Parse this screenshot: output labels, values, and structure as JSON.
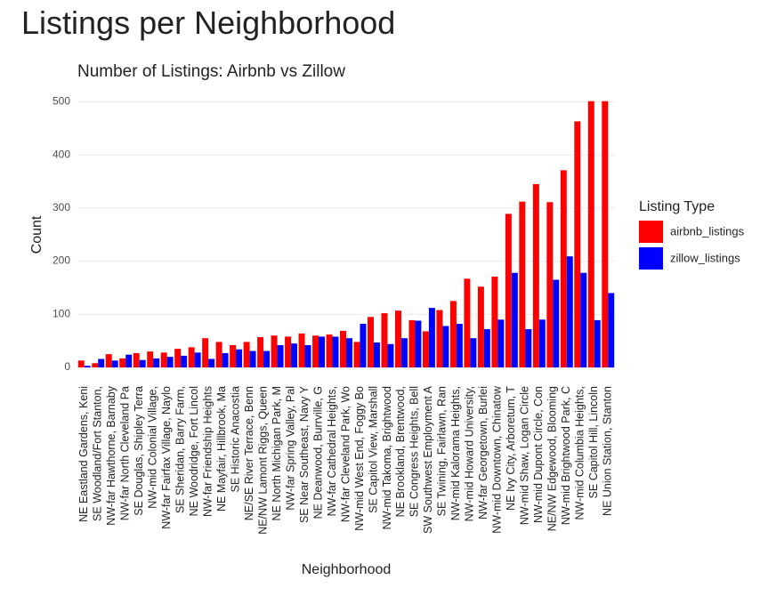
{
  "page_title": "Listings per Neighborhood",
  "chart_data": {
    "type": "grouped-bar",
    "title": "Number of Listings: Airbnb vs Zillow",
    "x_label": "Neighborhood",
    "y_label": "Count",
    "legend_title": "Listing Type",
    "legend_position": "right",
    "categories": [
      "NE Eastland Gardens, Keni",
      "SE Woodland/Fort Stanton,",
      "NW-far Hawthorne, Barnaby",
      "NW-far North Cleveland Pa",
      "SE Douglas, Shipley Terra",
      "NW-mid Colonial Village,",
      "NW-far Fairfax Village, Naylo",
      "SE Sheridan, Barry Farm,",
      "NE Woodridge, Fort Lincol",
      "NW-far Friendship Heights",
      "NE Mayfair, Hillbrook, Ma",
      "SE Historic Anacostia",
      "NE/SE River Terrace, Benn",
      "NE/NW Lamont Riggs, Queen",
      "NE North Michigan Park, M",
      "NW-far Spring Valley, Pal",
      "SE Near Southeast, Navy Y",
      "NE Deanwood, Burrville, G",
      "NW-far Cathedral Heights,",
      "NW-far Cleveland Park, Wo",
      "NW-mid West End, Foggy Bo",
      "SE Capitol View, Marshall",
      "NW-mid Takoma, Brightwood",
      "NE Brookland, Brentwood,",
      "SE Congress Heights, Bell",
      "SW Southwest Employment A",
      "SE Twining, Fairlawn, Ran",
      "NW-mid Kalorama Heights,",
      "NW-mid Howard University,",
      "NW-far Georgetown, Burlei",
      "NW-mid Downtown, Chinatow",
      "NE Ivy City, Arboretum, T",
      "NW-mid Shaw, Logan Circle",
      "NW-mid Dupont Circle, Con",
      "NE/NW Edgewood, Blooming",
      "NW-mid Brightwood Park, C",
      "NW-mid Columbia Heights,",
      "SE Capitol Hill, Lincoln",
      "NE Union Station, Stanton"
    ],
    "series": [
      {
        "name": "airbnb_listings",
        "color": "#ff0000",
        "values": [
          13,
          8,
          25,
          17,
          27,
          30,
          28,
          35,
          38,
          55,
          48,
          42,
          48,
          57,
          60,
          58,
          64,
          60,
          62,
          69,
          48,
          95,
          102,
          107,
          89,
          68,
          108,
          125,
          167,
          152,
          171,
          289,
          312,
          345,
          311,
          371,
          463,
          501,
          501
        ]
      },
      {
        "name": "zillow_listings",
        "color": "#0000ff",
        "values": [
          3,
          16,
          13,
          24,
          14,
          17,
          20,
          22,
          28,
          16,
          27,
          34,
          31,
          31,
          42,
          45,
          42,
          58,
          58,
          55,
          82,
          47,
          44,
          55,
          88,
          112,
          78,
          82,
          55,
          72,
          90,
          178,
          72,
          90,
          165,
          209,
          178,
          89,
          140
        ]
      }
    ],
    "ylim": [
      -25,
      524
    ],
    "yticks": [
      0,
      100,
      200,
      300,
      400,
      500
    ],
    "grid": true
  }
}
